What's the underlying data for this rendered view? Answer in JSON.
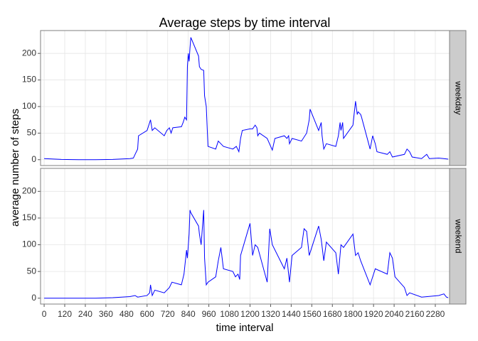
{
  "chart_data": [
    {
      "type": "line",
      "title": "Average steps by time interval",
      "y_label": "average number of steps",
      "strip": "weekday",
      "color": "#0000ff",
      "x": [
        0,
        100,
        200,
        300,
        400,
        500,
        520,
        530,
        545,
        550,
        600,
        615,
        620,
        630,
        645,
        700,
        715,
        730,
        740,
        750,
        800,
        810,
        820,
        830,
        835,
        840,
        845,
        850,
        855,
        900,
        905,
        915,
        930,
        935,
        945,
        955,
        1000,
        1015,
        1030,
        1045,
        1100,
        1120,
        1135,
        1145,
        1155,
        1200,
        1215,
        1230,
        1240,
        1245,
        1255,
        1300,
        1330,
        1345,
        1400,
        1415,
        1425,
        1430,
        1445,
        1500,
        1530,
        1545,
        1550,
        1600,
        1615,
        1620,
        1630,
        1645,
        1700,
        1715,
        1725,
        1730,
        1740,
        1745,
        1800,
        1810,
        1815,
        1825,
        1830,
        1845,
        1850,
        1900,
        1915,
        1930,
        1940,
        2000,
        2015,
        2030,
        2100,
        2115,
        2130,
        2145,
        2200,
        2230,
        2245,
        2300,
        2330,
        2355
      ],
      "values": [
        2,
        0.5,
        0,
        0,
        0.5,
        2,
        3,
        10,
        20,
        45,
        55,
        70,
        75,
        55,
        60,
        45,
        55,
        60,
        50,
        60,
        62,
        70,
        80,
        75,
        175,
        200,
        185,
        210,
        230,
        195,
        175,
        170,
        168,
        120,
        100,
        25,
        20,
        35,
        30,
        25,
        20,
        25,
        15,
        40,
        55,
        58,
        58,
        65,
        60,
        45,
        50,
        40,
        18,
        40,
        45,
        40,
        45,
        30,
        40,
        35,
        50,
        75,
        95,
        55,
        70,
        45,
        20,
        30,
        25,
        45,
        70,
        55,
        70,
        40,
        65,
        95,
        110,
        85,
        90,
        85,
        80,
        20,
        45,
        30,
        15,
        10,
        15,
        5,
        10,
        20,
        15,
        5,
        2,
        10,
        2,
        3,
        2,
        1
      ],
      "xlim": [
        -21,
        2363
      ],
      "ylim": [
        -11,
        243
      ],
      "yticks": [
        0,
        50,
        100,
        150,
        200
      ],
      "xticks": [
        0,
        120,
        240,
        360,
        480,
        600,
        720,
        840,
        960,
        1080,
        1200,
        1320,
        1440,
        1560,
        1680,
        1800,
        1920,
        2040,
        2160,
        2280
      ]
    },
    {
      "type": "line",
      "x_label": "time interval",
      "strip": "weekend",
      "color": "#0000ff",
      "x": [
        0,
        100,
        200,
        300,
        400,
        500,
        530,
        545,
        600,
        615,
        620,
        630,
        645,
        700,
        730,
        745,
        800,
        815,
        820,
        830,
        835,
        845,
        850,
        855,
        900,
        905,
        915,
        930,
        935,
        945,
        955,
        1000,
        1015,
        1030,
        1045,
        1100,
        1115,
        1130,
        1140,
        1145,
        1200,
        1215,
        1230,
        1245,
        1300,
        1315,
        1330,
        1400,
        1415,
        1430,
        1445,
        1500,
        1515,
        1530,
        1545,
        1600,
        1615,
        1630,
        1645,
        1700,
        1715,
        1730,
        1745,
        1800,
        1815,
        1830,
        1845,
        1900,
        1915,
        1930,
        2000,
        2015,
        2030,
        2045,
        2100,
        2115,
        2130,
        2200,
        2300,
        2330,
        2345,
        2355
      ],
      "values": [
        0,
        0,
        0,
        0,
        1,
        3,
        5,
        2,
        5,
        10,
        25,
        5,
        15,
        10,
        20,
        30,
        25,
        45,
        60,
        90,
        75,
        120,
        165,
        160,
        135,
        120,
        100,
        165,
        75,
        25,
        30,
        40,
        70,
        95,
        55,
        50,
        40,
        45,
        35,
        80,
        140,
        80,
        100,
        95,
        30,
        130,
        100,
        55,
        75,
        30,
        80,
        95,
        130,
        125,
        80,
        135,
        110,
        70,
        105,
        85,
        45,
        100,
        95,
        120,
        80,
        85,
        70,
        25,
        40,
        55,
        45,
        85,
        75,
        40,
        20,
        5,
        10,
        2,
        5,
        8,
        2,
        1
      ],
      "xlim": [
        -21,
        2363
      ],
      "ylim": [
        -11,
        243
      ],
      "yticks": [
        0,
        50,
        100,
        150,
        200
      ],
      "xticks": [
        0,
        120,
        240,
        360,
        480,
        600,
        720,
        840,
        960,
        1080,
        1200,
        1320,
        1440,
        1560,
        1680,
        1800,
        1920,
        2040,
        2160,
        2280
      ]
    }
  ]
}
